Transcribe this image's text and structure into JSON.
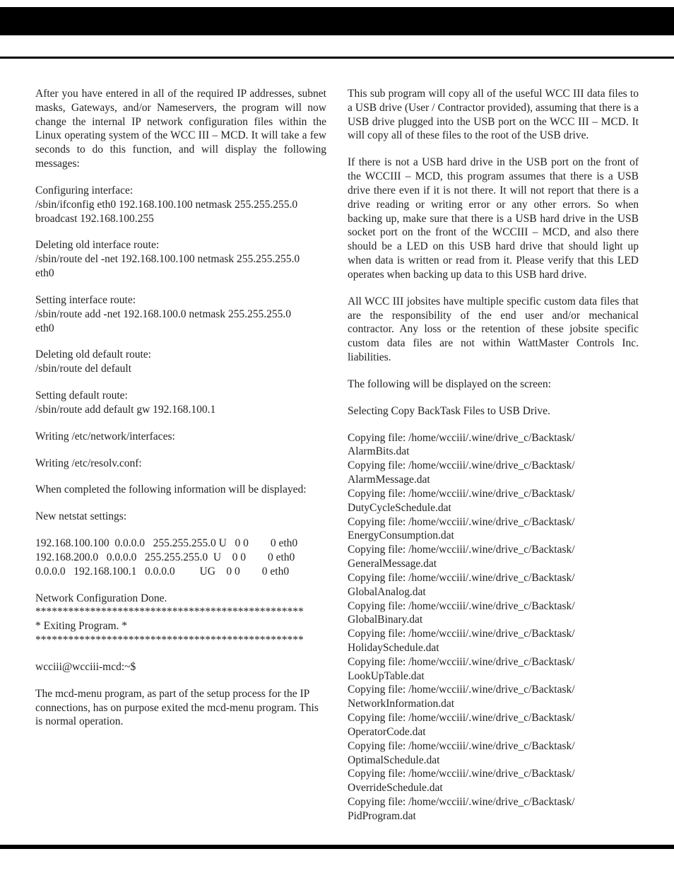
{
  "left": {
    "intro": "After you have entered in all of the required IP addresses, subnet masks, Gateways, and/or Nameservers, the program will now change the internal IP network configuration files within the Linux operating system of the WCC III – MCD.  It will take a few seconds to do this function, and will display the following messages:",
    "conf_label": "Configuring interface:",
    "conf_l1": "/sbin/ifconfig eth0 192.168.100.100 netmask 255.255.255.0",
    "conf_l2": "broadcast 192.168.100.255",
    "delroute_label": "Deleting old interface route:",
    "delroute_l1": "/sbin/route del -net 192.168.100.100 netmask 255.255.255.0",
    "delroute_l2": "eth0",
    "setroute_label": "Setting interface route:",
    "setroute_l1": "/sbin/route add -net 192.168.100.0 netmask 255.255.255.0",
    "setroute_l2": "eth0",
    "deldef_label": "Deleting old default route:",
    "deldef_l1": "/sbin/route del default",
    "setdef_label": "Setting default route:",
    "setdef_l1": "/sbin/route add default gw 192.168.100.1",
    "write1": "Writing /etc/network/interfaces:",
    "write2": "Writing /etc/resolv.conf:",
    "completed": "When completed the following information will be displayed:",
    "netstat_label": "New netstat settings:",
    "netstat": "192.168.100.100  0.0.0.0   255.255.255.0 U   0 0        0 eth0\n192.168.200.0   0.0.0.0   255.255.255.0  U    0 0        0 eth0\n0.0.0.0   192.168.100.1   0.0.0.0         UG    0 0        0 eth0",
    "done": "Network Configuration Done.",
    "stars": "*************************************************",
    "exit": "*                               Exiting Program.                              *",
    "prompt": "wcciii@wcciii-mcd:~$",
    "outro": "The mcd-menu program, as part of the setup process for the IP connections, has on purpose exited the mcd-menu program. This is normal operation."
  },
  "right": {
    "p1": "This sub program will copy all of the useful WCC III data files to a USB drive (User / Contractor provided), assuming that there is a USB drive plugged into the USB port on the WCC III – MCD.  It will copy all of these files to the root of the USB drive.",
    "p2": "If there is not a USB hard drive in the USB port on the front of the WCCIII – MCD, this program assumes that there is a USB drive there even if it is not there. It will not report that there is a drive reading or writing error or any other errors. So when backing up, make sure that there is a USB hard drive in the USB socket port on the front of the WCCIII – MCD, and also there should be a LED on this USB hard drive that should light up when data is written or read from it. Please verify that this LED operates when backing up data to this USB hard drive.",
    "p3": "All WCC III jobsites have multiple specific custom data files that are the responsibility of the end user and/or mechanical contractor. Any loss or the retention of these jobsite specific custom data files are not within WattMaster Controls Inc. liabilities.",
    "p4": "The following will be displayed on the screen:",
    "p5": "Selecting Copy BackTask Files to USB Drive.",
    "files": [
      "AlarmBits.dat",
      "AlarmMessage.dat",
      "DutyCycleSchedule.dat",
      "EnergyConsumption.dat",
      "GeneralMessage.dat",
      "GlobalAnalog.dat",
      "GlobalBinary.dat",
      "HolidaySchedule.dat",
      "LookUpTable.dat",
      "NetworkInformation.dat",
      "OperatorCode.dat",
      "OptimalSchedule.dat",
      "OverrideSchedule.dat",
      "PidProgram.dat"
    ],
    "copy_prefix": "Copying file: /home/wcciii/.wine/drive_c/Backtask/"
  }
}
